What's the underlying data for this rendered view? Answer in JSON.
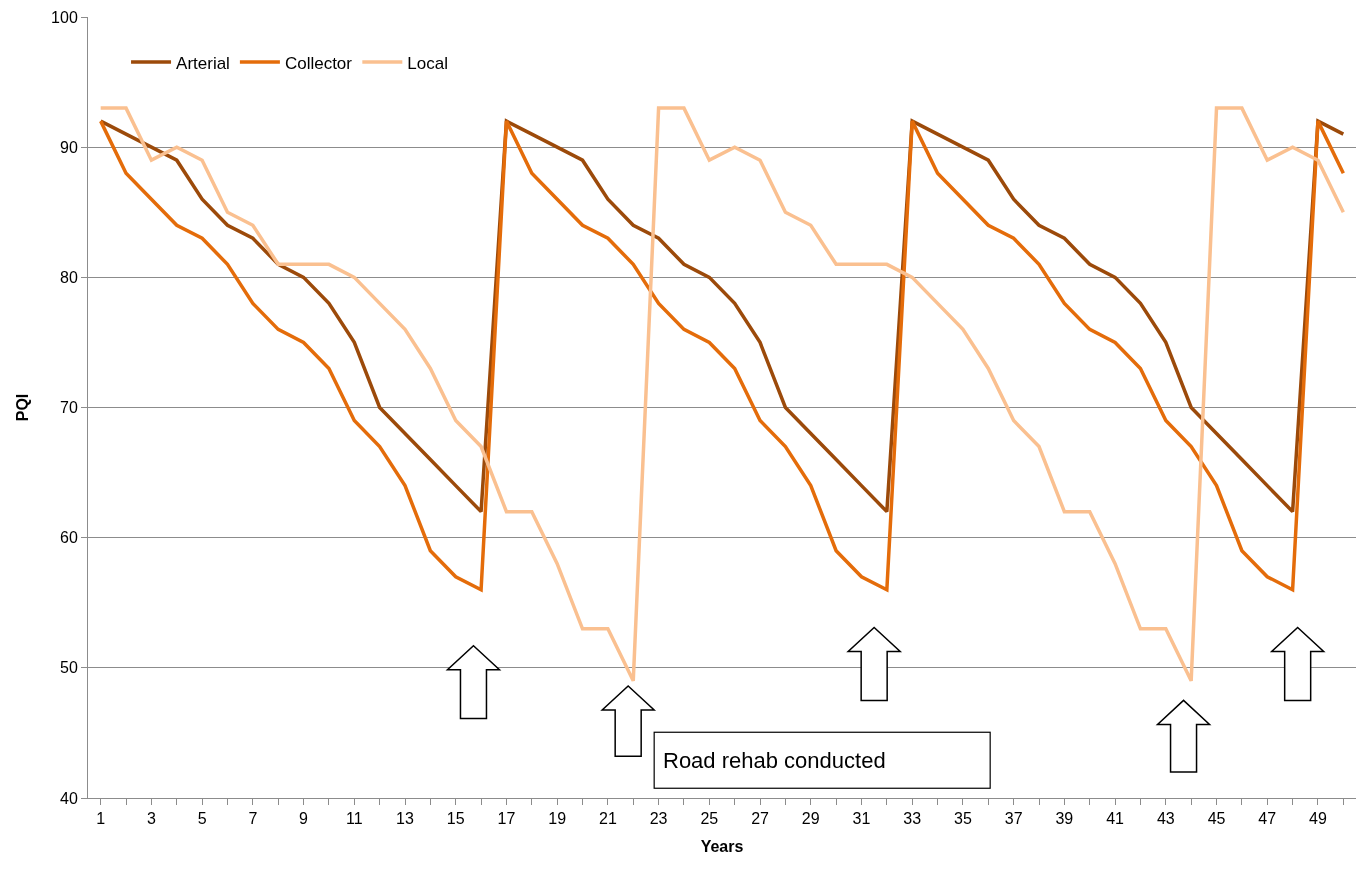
{
  "chart_data": {
    "type": "line",
    "xlabel": "Years",
    "ylabel": "PQI",
    "x": [
      1,
      2,
      3,
      4,
      5,
      6,
      7,
      8,
      9,
      10,
      11,
      12,
      13,
      14,
      15,
      16,
      17,
      18,
      19,
      20,
      21,
      22,
      23,
      24,
      25,
      26,
      27,
      28,
      29,
      30,
      31,
      32,
      33,
      34,
      35,
      36,
      37,
      38,
      39,
      40,
      41,
      42,
      43,
      44,
      45,
      46,
      47,
      48,
      49,
      50
    ],
    "series": [
      {
        "name": "Arterial",
        "color": "#9c4a0a",
        "values": [
          92,
          91,
          90,
          89,
          86,
          84,
          83,
          81,
          80,
          78,
          75,
          70,
          68,
          66,
          64,
          62,
          92,
          91,
          90,
          89,
          86,
          84,
          83,
          81,
          80,
          78,
          75,
          70,
          68,
          66,
          64,
          62,
          92,
          91,
          90,
          89,
          86,
          84,
          83,
          81,
          80,
          78,
          75,
          70,
          68,
          66,
          64,
          62,
          92,
          91
        ]
      },
      {
        "name": "Collector",
        "color": "#e46c0a",
        "values": [
          92,
          88,
          86,
          84,
          83,
          81,
          78,
          76,
          75,
          73,
          69,
          67,
          64,
          59,
          57,
          56,
          92,
          88,
          86,
          84,
          83,
          81,
          78,
          76,
          75,
          73,
          69,
          67,
          64,
          59,
          57,
          56,
          92,
          88,
          86,
          84,
          83,
          81,
          78,
          76,
          75,
          73,
          69,
          67,
          64,
          59,
          57,
          56,
          92,
          88
        ]
      },
      {
        "name": "Local",
        "color": "#fac090",
        "values": [
          93,
          93,
          89,
          90,
          89,
          85,
          84,
          81,
          81,
          81,
          80,
          78,
          76,
          73,
          69,
          67,
          62,
          62,
          58,
          53,
          53,
          49,
          93,
          93,
          89,
          90,
          89,
          85,
          84,
          81,
          81,
          81,
          80,
          78,
          76,
          73,
          69,
          67,
          62,
          62,
          58,
          53,
          53,
          49,
          93,
          93,
          89,
          90,
          89,
          85
        ]
      }
    ],
    "xlim": [
      0.5,
      50.5
    ],
    "xticks": [
      1,
      {
        "value": 2,
        "label": null
      },
      3,
      {
        "value": 4,
        "label": null
      },
      5,
      {
        "value": 6,
        "label": null
      },
      7,
      {
        "value": 8,
        "label": null
      },
      9,
      {
        "value": 10,
        "label": null
      },
      11,
      {
        "value": 12,
        "label": null
      },
      13,
      {
        "value": 14,
        "label": null
      },
      15,
      {
        "value": 16,
        "label": null
      },
      17,
      {
        "value": 18,
        "label": null
      },
      19,
      {
        "value": 20,
        "label": null
      },
      21,
      {
        "value": 22,
        "label": null
      },
      23,
      {
        "value": 24,
        "label": null
      },
      25,
      {
        "value": 26,
        "label": null
      },
      27,
      {
        "value": 28,
        "label": null
      },
      29,
      {
        "value": 30,
        "label": null
      },
      31,
      {
        "value": 32,
        "label": null
      },
      33,
      {
        "value": 34,
        "label": null
      },
      35,
      {
        "value": 36,
        "label": null
      },
      37,
      {
        "value": 38,
        "label": null
      },
      39,
      {
        "value": 40,
        "label": null
      },
      41,
      {
        "value": 42,
        "label": null
      },
      43,
      {
        "value": 44,
        "label": null
      },
      45,
      {
        "value": 46,
        "label": null
      },
      47,
      {
        "value": 48,
        "label": null
      },
      49,
      {
        "value": 50,
        "label": null
      }
    ],
    "ylim": [
      40,
      100
    ],
    "yticks": [
      40,
      50,
      60,
      70,
      80,
      90,
      100
    ],
    "grid": "y",
    "legend": "top left",
    "marker": "none",
    "line_style": "solid",
    "annotations": [
      "Road rehab conducted"
    ]
  }
}
